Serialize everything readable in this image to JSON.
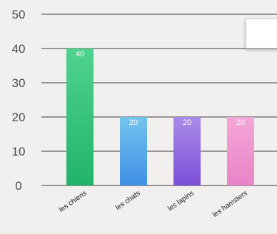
{
  "chart_data": {
    "type": "bar",
    "title": "",
    "xlabel": "",
    "ylabel": "",
    "categories": [
      "les chiens",
      "les chats",
      "les lapins",
      "les hamsters"
    ],
    "values": [
      40,
      20,
      20,
      20
    ],
    "data_labels": [
      "40",
      "20",
      "20",
      "20"
    ],
    "ylim": [
      0,
      50
    ],
    "yticks": [
      0,
      10,
      20,
      30,
      40,
      50
    ],
    "ytick_labels": [
      "0",
      "10",
      "20",
      "30",
      "40",
      "50"
    ],
    "grid": true,
    "colors": [
      {
        "top": "#4fd38e",
        "bottom": "#22b36b"
      },
      {
        "top": "#74c4ee",
        "bottom": "#3f8fe3"
      },
      {
        "top": "#a98be8",
        "bottom": "#7b4fd6"
      },
      {
        "top": "#f5a6d8",
        "bottom": "#e884c6"
      }
    ],
    "legend_placement": "top-right"
  }
}
